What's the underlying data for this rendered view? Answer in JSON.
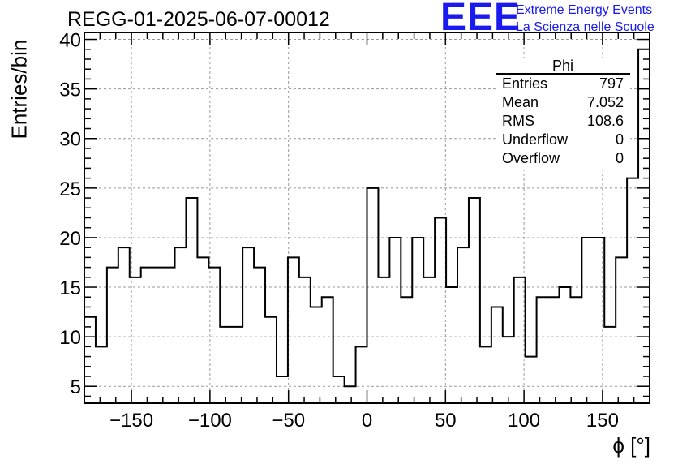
{
  "chart_data": {
    "type": "histogram",
    "title": "REGG-01-2025-06-07-00012",
    "xlabel": "ϕ [°]",
    "ylabel": "Entries/bin",
    "xlim": [
      -180,
      180
    ],
    "ylim": [
      3.3,
      40.7
    ],
    "grid": true,
    "x_ticks": [
      -150,
      -100,
      -50,
      0,
      50,
      100,
      150
    ],
    "y_ticks": [
      5,
      10,
      15,
      20,
      25,
      30,
      35,
      40
    ],
    "bin_width": 7.2,
    "values": [
      12,
      9,
      17,
      19,
      16,
      17,
      17,
      17,
      19,
      24,
      18,
      17,
      11,
      11,
      19,
      17,
      12,
      6,
      18,
      16,
      13,
      14,
      6,
      5,
      9,
      25,
      16,
      20,
      14,
      20,
      16,
      22,
      15,
      19,
      24,
      9,
      13,
      10,
      16,
      8,
      14,
      14,
      15,
      14,
      20,
      20,
      11,
      18,
      26,
      39
    ],
    "stats": {
      "name": "Phi",
      "rows": [
        {
          "label": "Entries",
          "value": "797"
        },
        {
          "label": "Mean",
          "value": "7.052"
        },
        {
          "label": "RMS",
          "value": "108.6"
        },
        {
          "label": "Underflow",
          "value": "0"
        },
        {
          "label": "Overflow",
          "value": "0"
        }
      ]
    }
  },
  "logo": {
    "mark": "EEE",
    "line1": "Extreme Energy Events",
    "line2": "La Scienza nelle Scuole"
  },
  "colors": {
    "line": "#000000",
    "grid": "#999999",
    "logo": "#1a1aee"
  }
}
